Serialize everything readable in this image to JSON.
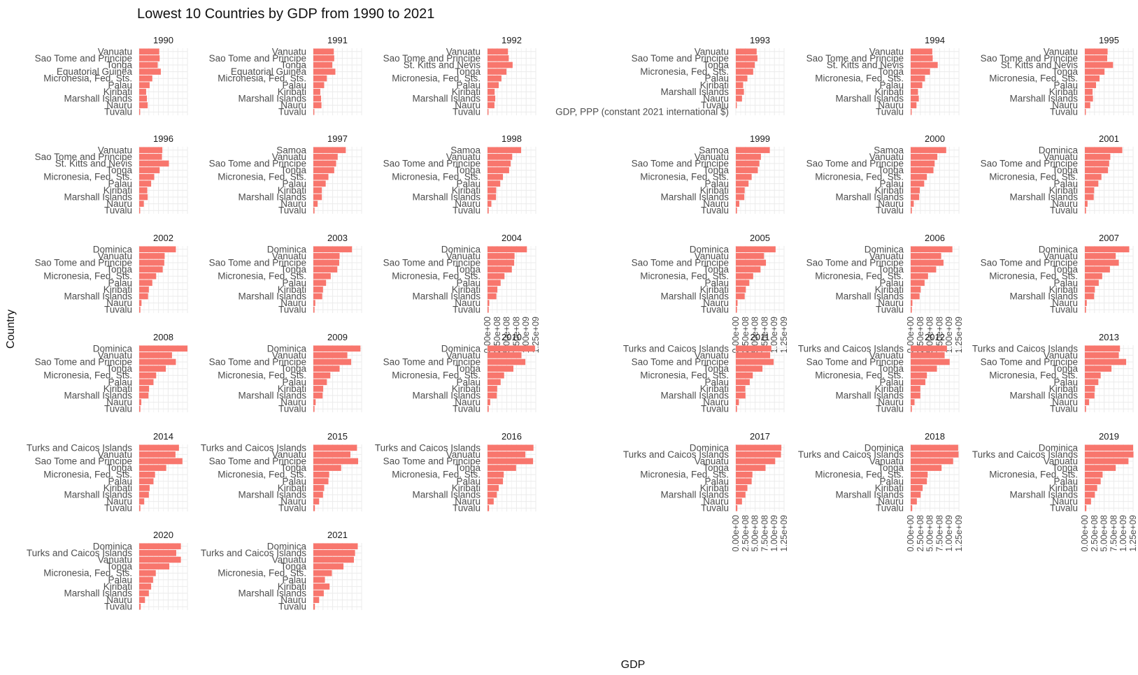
{
  "chart_data": {
    "type": "bar",
    "orientation": "horizontal",
    "title": "Lowest 10 Countries by GDP from 1990 to 2021",
    "xlabel": "GDP",
    "ylabel": "Country",
    "xlim": [
      0,
      1250000000
    ],
    "x_ticks": [
      "0.00e+00",
      "2.50e+08",
      "5.00e+08",
      "7.50e+08",
      "1.00e+09",
      "1.25e+09"
    ],
    "bar_color": "#F8766D",
    "grid": true,
    "facets": [
      {
        "year": "1990",
        "categories": [
          "Vanuatu",
          "Sao Tome and Principe",
          "Tonga",
          "Equatorial Guinea",
          "Micronesia, Fed. Sts.",
          "Palau",
          "Kiribati",
          "Marshall Islands",
          "Nauru",
          "Tuvalu"
        ],
        "values": [
          520000000,
          530000000,
          480000000,
          560000000,
          340000000,
          270000000,
          180000000,
          200000000,
          220000000,
          25000000
        ]
      },
      {
        "year": "1991",
        "categories": [
          "Vanuatu",
          "Sao Tome and Principe",
          "Tonga",
          "Equatorial Guinea",
          "Micronesia, Fed. Sts.",
          "Palau",
          "Kiribati",
          "Marshall Islands",
          "Nauru",
          "Tuvalu"
        ],
        "values": [
          530000000,
          540000000,
          490000000,
          570000000,
          350000000,
          280000000,
          180000000,
          200000000,
          210000000,
          25000000
        ]
      },
      {
        "year": "1992",
        "categories": [
          "Vanuatu",
          "Sao Tome and Principe",
          "St. Kitts and Nevis",
          "Tonga",
          "Micronesia, Fed. Sts.",
          "Palau",
          "Kiribati",
          "Marshall Islands",
          "Nauru",
          "Tuvalu"
        ],
        "values": [
          530000000,
          550000000,
          650000000,
          490000000,
          360000000,
          290000000,
          185000000,
          200000000,
          180000000,
          25000000
        ]
      },
      {
        "year": "1993",
        "categories": [
          "Vanuatu",
          "Sao Tome and Principe",
          "Tonga",
          "Micronesia, Fed. Sts.",
          "Palau",
          "Kiribati",
          "Marshall Islands",
          "Nauru",
          "Tuvalu",
          "GDP, PPP (constant 2021 international $)"
        ],
        "values": [
          540000000,
          560000000,
          490000000,
          450000000,
          300000000,
          190000000,
          210000000,
          160000000,
          25000000,
          0
        ]
      },
      {
        "year": "1994",
        "categories": [
          "Vanuatu",
          "Sao Tome and Principe",
          "St. Kitts and Nevis",
          "Tonga",
          "Micronesia, Fed. Sts.",
          "Palau",
          "Kiribati",
          "Marshall Islands",
          "Nauru",
          "Tuvalu"
        ],
        "values": [
          560000000,
          570000000,
          700000000,
          500000000,
          370000000,
          300000000,
          190000000,
          210000000,
          150000000,
          25000000
        ]
      },
      {
        "year": "1995",
        "categories": [
          "Vanuatu",
          "Sao Tome and Principe",
          "St. Kitts and Nevis",
          "Tonga",
          "Micronesia, Fed. Sts.",
          "Palau",
          "Kiribati",
          "Marshall Islands",
          "Nauru",
          "Tuvalu"
        ],
        "values": [
          590000000,
          580000000,
          730000000,
          510000000,
          380000000,
          290000000,
          200000000,
          210000000,
          140000000,
          25000000
        ]
      },
      {
        "year": "1996",
        "categories": [
          "Vanuatu",
          "Sao Tome and Principe",
          "St. Kitts and Nevis",
          "Tonga",
          "Micronesia, Fed. Sts.",
          "Palau",
          "Kiribati",
          "Marshall Islands",
          "Nauru",
          "Tuvalu"
        ],
        "values": [
          600000000,
          590000000,
          770000000,
          530000000,
          390000000,
          310000000,
          210000000,
          220000000,
          120000000,
          25000000
        ]
      },
      {
        "year": "1997",
        "categories": [
          "Samoa",
          "Vanuatu",
          "Sao Tome and Principe",
          "Tonga",
          "Micronesia, Fed. Sts.",
          "Palau",
          "Kiribati",
          "Marshall Islands",
          "Nauru",
          "Tuvalu"
        ],
        "values": [
          840000000,
          630000000,
          590000000,
          540000000,
          390000000,
          320000000,
          220000000,
          220000000,
          110000000,
          30000000
        ]
      },
      {
        "year": "1998",
        "categories": [
          "Samoa",
          "Vanuatu",
          "Sao Tome and Principe",
          "Tonga",
          "Micronesia, Fed. Sts.",
          "Palau",
          "Kiribati",
          "Marshall Islands",
          "Nauru",
          "Tuvalu"
        ],
        "values": [
          870000000,
          640000000,
          600000000,
          560000000,
          400000000,
          330000000,
          225000000,
          220000000,
          100000000,
          30000000
        ]
      },
      {
        "year": "1999",
        "categories": [
          "Samoa",
          "Vanuatu",
          "Sao Tome and Principe",
          "Tonga",
          "Micronesia, Fed. Sts.",
          "Palau",
          "Kiribati",
          "Marshall Islands",
          "Nauru",
          "Tuvalu"
        ],
        "values": [
          880000000,
          650000000,
          610000000,
          570000000,
          410000000,
          330000000,
          230000000,
          220000000,
          90000000,
          30000000
        ]
      },
      {
        "year": "2000",
        "categories": [
          "Samoa",
          "Vanuatu",
          "Sao Tome and Principe",
          "Tonga",
          "Micronesia, Fed. Sts.",
          "Palau",
          "Kiribati",
          "Marshall Islands",
          "Nauru",
          "Tuvalu"
        ],
        "values": [
          920000000,
          690000000,
          620000000,
          590000000,
          420000000,
          350000000,
          235000000,
          220000000,
          80000000,
          30000000
        ]
      },
      {
        "year": "2001",
        "categories": [
          "Dominica",
          "Vanuatu",
          "Sao Tome and Principe",
          "Tonga",
          "Micronesia, Fed. Sts.",
          "Palau",
          "Kiribati",
          "Marshall Islands",
          "Nauru",
          "Tuvalu"
        ],
        "values": [
          970000000,
          660000000,
          630000000,
          600000000,
          430000000,
          350000000,
          240000000,
          230000000,
          70000000,
          30000000
        ]
      },
      {
        "year": "2002",
        "categories": [
          "Dominica",
          "Vanuatu",
          "Sao Tome and Principe",
          "Tonga",
          "Micronesia, Fed. Sts.",
          "Palau",
          "Kiribati",
          "Marshall Islands",
          "Nauru",
          "Tuvalu"
        ],
        "values": [
          950000000,
          660000000,
          650000000,
          610000000,
          440000000,
          340000000,
          250000000,
          230000000,
          60000000,
          30000000
        ]
      },
      {
        "year": "2003",
        "categories": [
          "Dominica",
          "Vanuatu",
          "Sao Tome and Principe",
          "Tonga",
          "Micronesia, Fed. Sts.",
          "Palau",
          "Kiribati",
          "Marshall Islands",
          "Nauru",
          "Tuvalu"
        ],
        "values": [
          1000000000,
          680000000,
          670000000,
          620000000,
          450000000,
          330000000,
          250000000,
          230000000,
          50000000,
          30000000
        ]
      },
      {
        "year": "2004",
        "categories": [
          "Dominica",
          "Vanuatu",
          "Sao Tome and Principe",
          "Tonga",
          "Micronesia, Fed. Sts.",
          "Palau",
          "Kiribati",
          "Marshall Islands",
          "Nauru",
          "Tuvalu"
        ],
        "values": [
          1020000000,
          700000000,
          690000000,
          630000000,
          440000000,
          340000000,
          255000000,
          230000000,
          45000000,
          30000000
        ]
      },
      {
        "year": "2005",
        "categories": [
          "Dominica",
          "Vanuatu",
          "Sao Tome and Principe",
          "Tonga",
          "Micronesia, Fed. Sts.",
          "Palau",
          "Kiribati",
          "Marshall Islands",
          "Nauru",
          "Tuvalu"
        ],
        "values": [
          1030000000,
          730000000,
          780000000,
          640000000,
          450000000,
          350000000,
          260000000,
          230000000,
          45000000,
          30000000
        ]
      },
      {
        "year": "2006",
        "categories": [
          "Dominica",
          "Vanuatu",
          "Sao Tome and Principe",
          "Tonga",
          "Micronesia, Fed. Sts.",
          "Palau",
          "Kiribati",
          "Marshall Islands",
          "Nauru",
          "Tuvalu"
        ],
        "values": [
          1080000000,
          790000000,
          850000000,
          660000000,
          450000000,
          360000000,
          260000000,
          230000000,
          45000000,
          30000000
        ]
      },
      {
        "year": "2007",
        "categories": [
          "Dominica",
          "Vanuatu",
          "Sao Tome and Principe",
          "Tonga",
          "Micronesia, Fed. Sts.",
          "Palau",
          "Kiribati",
          "Marshall Islands",
          "Nauru",
          "Tuvalu"
        ],
        "values": [
          1150000000,
          800000000,
          880000000,
          650000000,
          450000000,
          360000000,
          260000000,
          240000000,
          50000000,
          30000000
        ]
      },
      {
        "year": "2008",
        "categories": [
          "Dominica",
          "Vanuatu",
          "Sao Tome and Principe",
          "Tonga",
          "Micronesia, Fed. Sts.",
          "Palau",
          "Kiribati",
          "Marshall Islands",
          "Nauru",
          "Tuvalu"
        ],
        "values": [
          1250000000,
          850000000,
          950000000,
          690000000,
          440000000,
          370000000,
          255000000,
          240000000,
          55000000,
          30000000
        ]
      },
      {
        "year": "2009",
        "categories": [
          "Dominica",
          "Vanuatu",
          "Sao Tome and Principe",
          "Tonga",
          "Micronesia, Fed. Sts.",
          "Palau",
          "Kiribati",
          "Marshall Islands",
          "Nauru",
          "Tuvalu"
        ],
        "values": [
          1220000000,
          880000000,
          980000000,
          680000000,
          440000000,
          350000000,
          255000000,
          240000000,
          60000000,
          30000000
        ]
      },
      {
        "year": "2010",
        "categories": [
          "Dominica",
          "Vanuatu",
          "Sao Tome and Principe",
          "Tonga",
          "Micronesia, Fed. Sts.",
          "Palau",
          "Kiribati",
          "Marshall Islands",
          "Nauru",
          "Tuvalu"
        ],
        "values": [
          1230000000,
          880000000,
          980000000,
          670000000,
          430000000,
          340000000,
          250000000,
          240000000,
          70000000,
          30000000
        ]
      },
      {
        "year": "2011",
        "categories": [
          "Turks and Caicos Islands",
          "Vanuatu",
          "Sao Tome and Principe",
          "Tonga",
          "Micronesia, Fed. Sts.",
          "Palau",
          "Kiribati",
          "Marshall Islands",
          "Nauru",
          "Tuvalu"
        ],
        "values": [
          920000000,
          890000000,
          980000000,
          690000000,
          440000000,
          360000000,
          245000000,
          250000000,
          80000000,
          30000000
        ]
      },
      {
        "year": "2012",
        "categories": [
          "Turks and Caicos Islands",
          "Vanuatu",
          "Sao Tome and Principe",
          "Tonga",
          "Micronesia, Fed. Sts.",
          "Palau",
          "Kiribati",
          "Marshall Islands",
          "Nauru",
          "Tuvalu"
        ],
        "values": [
          940000000,
          880000000,
          1010000000,
          680000000,
          420000000,
          380000000,
          250000000,
          250000000,
          100000000,
          30000000
        ]
      },
      {
        "year": "2013",
        "categories": [
          "Turks and Caicos Islands",
          "Vanuatu",
          "Sao Tome and Principe",
          "Tonga",
          "Micronesia, Fed. Sts.",
          "Palau",
          "Kiribati",
          "Marshall Islands",
          "Nauru",
          "Tuvalu"
        ],
        "values": [
          910000000,
          880000000,
          1070000000,
          690000000,
          410000000,
          350000000,
          260000000,
          250000000,
          110000000,
          30000000
        ]
      },
      {
        "year": "2014",
        "categories": [
          "Turks and Caicos Islands",
          "Vanuatu",
          "Sao Tome and Principe",
          "Tonga",
          "Micronesia, Fed. Sts.",
          "Palau",
          "Kiribati",
          "Marshall Islands",
          "Nauru",
          "Tuvalu"
        ],
        "values": [
          1030000000,
          940000000,
          1120000000,
          700000000,
          410000000,
          370000000,
          270000000,
          250000000,
          130000000,
          30000000
        ]
      },
      {
        "year": "2015",
        "categories": [
          "Turks and Caicos Islands",
          "Vanuatu",
          "Sao Tome and Principe",
          "Tonga",
          "Micronesia, Fed. Sts.",
          "Palau",
          "Kiribati",
          "Marshall Islands",
          "Nauru",
          "Tuvalu"
        ],
        "values": [
          1130000000,
          960000000,
          1160000000,
          720000000,
          410000000,
          390000000,
          280000000,
          250000000,
          150000000,
          40000000
        ]
      },
      {
        "year": "2016",
        "categories": [
          "Turks and Caicos Islands",
          "Vanuatu",
          "Sao Tome and Principe",
          "Tonga",
          "Micronesia, Fed. Sts.",
          "Palau",
          "Kiribati",
          "Marshall Islands",
          "Nauru",
          "Tuvalu"
        ],
        "values": [
          1190000000,
          980000000,
          1180000000,
          740000000,
          420000000,
          400000000,
          290000000,
          240000000,
          160000000,
          40000000
        ]
      },
      {
        "year": "2017",
        "categories": [
          "Dominica",
          "Turks and Caicos Islands",
          "Vanuatu",
          "Tonga",
          "Micronesia, Fed. Sts.",
          "Palau",
          "Kiribati",
          "Marshall Islands",
          "Nauru",
          "Tuvalu"
        ],
        "values": [
          1180000000,
          1170000000,
          1020000000,
          770000000,
          430000000,
          410000000,
          300000000,
          250000000,
          160000000,
          40000000
        ]
      },
      {
        "year": "2018",
        "categories": [
          "Dominica",
          "Turks and Caicos Islands",
          "Vanuatu",
          "Tonga",
          "Micronesia, Fed. Sts.",
          "Palau",
          "Kiribati",
          "Marshall Islands",
          "Nauru",
          "Tuvalu"
        ],
        "values": [
          1230000000,
          1240000000,
          1100000000,
          800000000,
          440000000,
          420000000,
          310000000,
          260000000,
          160000000,
          40000000
        ]
      },
      {
        "year": "2019",
        "categories": [
          "Dominica",
          "Turks and Caicos Islands",
          "Vanuatu",
          "Tonga",
          "Micronesia, Fed. Sts.",
          "Palau",
          "Kiribati",
          "Marshall Islands",
          "Nauru",
          "Tuvalu"
        ],
        "values": [
          1250000000,
          1260000000,
          1130000000,
          800000000,
          460000000,
          410000000,
          320000000,
          260000000,
          160000000,
          40000000
        ]
      },
      {
        "year": "2020",
        "categories": [
          "Dominica",
          "Turks and Caicos Islands",
          "Vanuatu",
          "Tonga",
          "Micronesia, Fed. Sts.",
          "Palau",
          "Kiribati",
          "Marshall Islands",
          "Nauru",
          "Tuvalu"
        ],
        "values": [
          1080000000,
          960000000,
          1080000000,
          780000000,
          430000000,
          360000000,
          310000000,
          250000000,
          150000000,
          40000000
        ]
      },
      {
        "year": "2021",
        "categories": [
          "Dominica",
          "Turks and Caicos Islands",
          "Vanuatu",
          "Tonga",
          "Micronesia, Fed. Sts.",
          "Palau",
          "Kiribati",
          "Marshall Islands",
          "Nauru",
          "Tuvalu"
        ],
        "values": [
          1150000000,
          1080000000,
          1050000000,
          780000000,
          480000000,
          300000000,
          420000000,
          270000000,
          150000000,
          40000000
        ]
      }
    ]
  }
}
